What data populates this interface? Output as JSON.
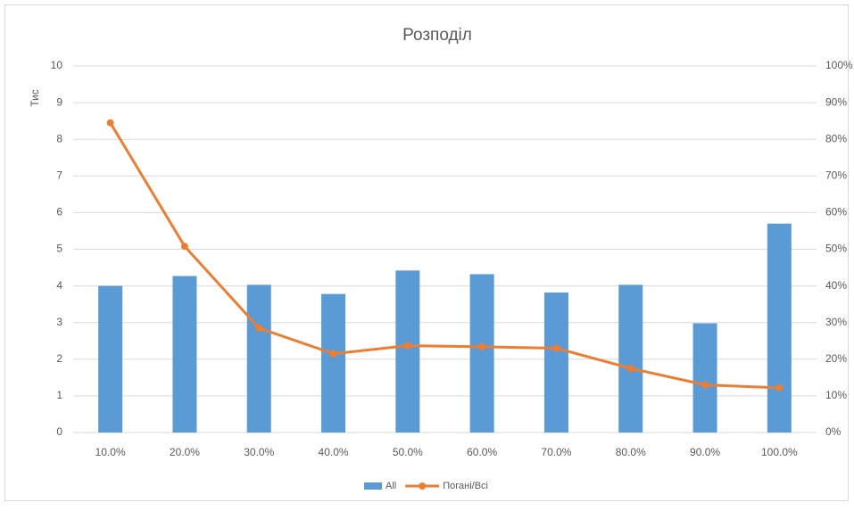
{
  "chart_data": {
    "type": "combo",
    "title": "Розподіл",
    "ylabel": "Тис",
    "categories": [
      "10.0%",
      "20.0%",
      "30.0%",
      "40.0%",
      "50.0%",
      "60.0%",
      "70.0%",
      "80.0%",
      "90.0%",
      "100.0%"
    ],
    "series": [
      {
        "name": "All",
        "type": "bar",
        "color": "#5b9bd5",
        "values": [
          4.0,
          4.27,
          4.03,
          3.78,
          4.42,
          4.32,
          3.82,
          4.03,
          2.98,
          5.7
        ]
      },
      {
        "name": "Погані/Всі",
        "type": "line",
        "axis": "y2",
        "color": "#ed7d31",
        "values": [
          84.5,
          50.8,
          28.5,
          21.5,
          23.7,
          23.4,
          23.0,
          17.5,
          13.0,
          12.2
        ]
      }
    ],
    "ylim": [
      0,
      10
    ],
    "yticks": [
      0,
      1,
      2,
      3,
      4,
      5,
      6,
      7,
      8,
      9,
      10
    ],
    "y2lim": [
      0,
      100
    ],
    "y2ticks": [
      {
        "value": 0,
        "label": "0%"
      },
      {
        "value": 10,
        "label": "10%"
      },
      {
        "value": 20,
        "label": "20%"
      },
      {
        "value": 30,
        "label": "30%"
      },
      {
        "value": 40,
        "label": "40%"
      },
      {
        "value": 50,
        "label": "50%"
      },
      {
        "value": 60,
        "label": "60%"
      },
      {
        "value": 70,
        "label": "70%"
      },
      {
        "value": 80,
        "label": "80%"
      },
      {
        "value": 90,
        "label": "90%"
      },
      {
        "value": 100,
        "label": "100%"
      }
    ],
    "grid": true,
    "legend": "bottom"
  }
}
